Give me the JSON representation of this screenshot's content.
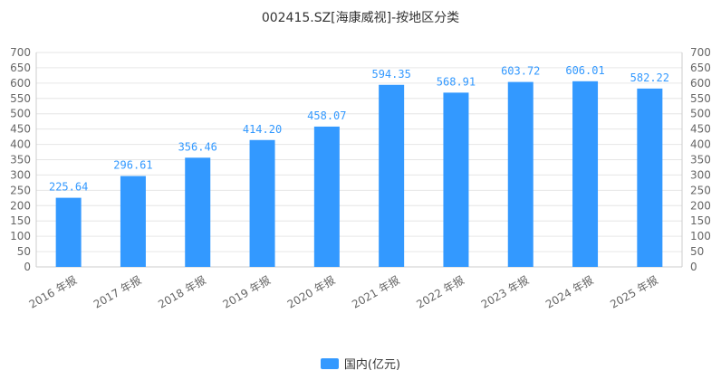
{
  "chart_data": {
    "type": "bar",
    "title": "002415.SZ[海康威视]-按地区分类",
    "categories": [
      "2016 年报",
      "2017 年报",
      "2018 年报",
      "2019 年报",
      "2020 年报",
      "2021 年报",
      "2022 年报",
      "2023 年报",
      "2024 年报",
      "2025 年报"
    ],
    "series": [
      {
        "name": "国内(亿元)",
        "values": [
          225.64,
          296.61,
          356.46,
          414.2,
          458.07,
          594.35,
          568.91,
          603.72,
          606.01,
          582.22
        ],
        "labels": [
          "225.64",
          "296.61",
          "356.46",
          "414.20",
          "458.07",
          "594.35",
          "568.91",
          "603.72",
          "606.01",
          "582.22"
        ]
      }
    ],
    "ylim": [
      0,
      700
    ],
    "yticks": [
      "0",
      "50",
      "100",
      "150",
      "200",
      "250",
      "300",
      "350",
      "400",
      "450",
      "500",
      "550",
      "600",
      "650",
      "700"
    ],
    "y_axis_both_sides": true,
    "grid": true,
    "legend_position": "bottom-center",
    "colors": {
      "bar": "#3399ff",
      "label": "#3399ff",
      "grid": "#e6e6e6",
      "axis": "#cccccc"
    }
  }
}
